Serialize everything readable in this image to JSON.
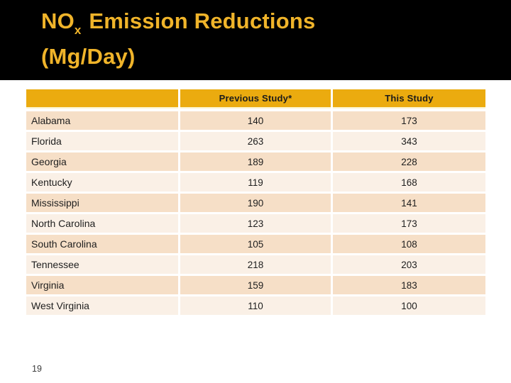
{
  "slide": {
    "title": {
      "prefix": "NO",
      "subscript": "x",
      "suffix": " Emission Reductions",
      "line2": "(Mg/Day)"
    },
    "page_number": "19"
  },
  "table": {
    "columns": [
      "",
      "Previous Study*",
      "This Study"
    ],
    "rows": [
      {
        "state": "Alabama",
        "previous": "140",
        "this": "173"
      },
      {
        "state": "Florida",
        "previous": "263",
        "this": "343"
      },
      {
        "state": "Georgia",
        "previous": "189",
        "this": "228"
      },
      {
        "state": "Kentucky",
        "previous": "119",
        "this": "168"
      },
      {
        "state": "Mississippi",
        "previous": "190",
        "this": "141"
      },
      {
        "state": "North Carolina",
        "previous": "123",
        "this": "173"
      },
      {
        "state": "South Carolina",
        "previous": "105",
        "this": "108"
      },
      {
        "state": "Tennessee",
        "previous": "218",
        "this": "203"
      },
      {
        "state": "Virginia",
        "previous": "159",
        "this": "183"
      },
      {
        "state": "West Virginia",
        "previous": "110",
        "this": "100"
      }
    ]
  },
  "colors": {
    "banner_background": "#000000",
    "title_gold": "#F0B42A",
    "table_header_orange": "#EBAB0F",
    "table_header_underline": "#FBF4CF",
    "row_dark_peach": "#F6DFC7",
    "row_light_peach": "#FAF0E6",
    "body_text": "#1e1e1e",
    "page_number_text": "#3c3c3c"
  }
}
